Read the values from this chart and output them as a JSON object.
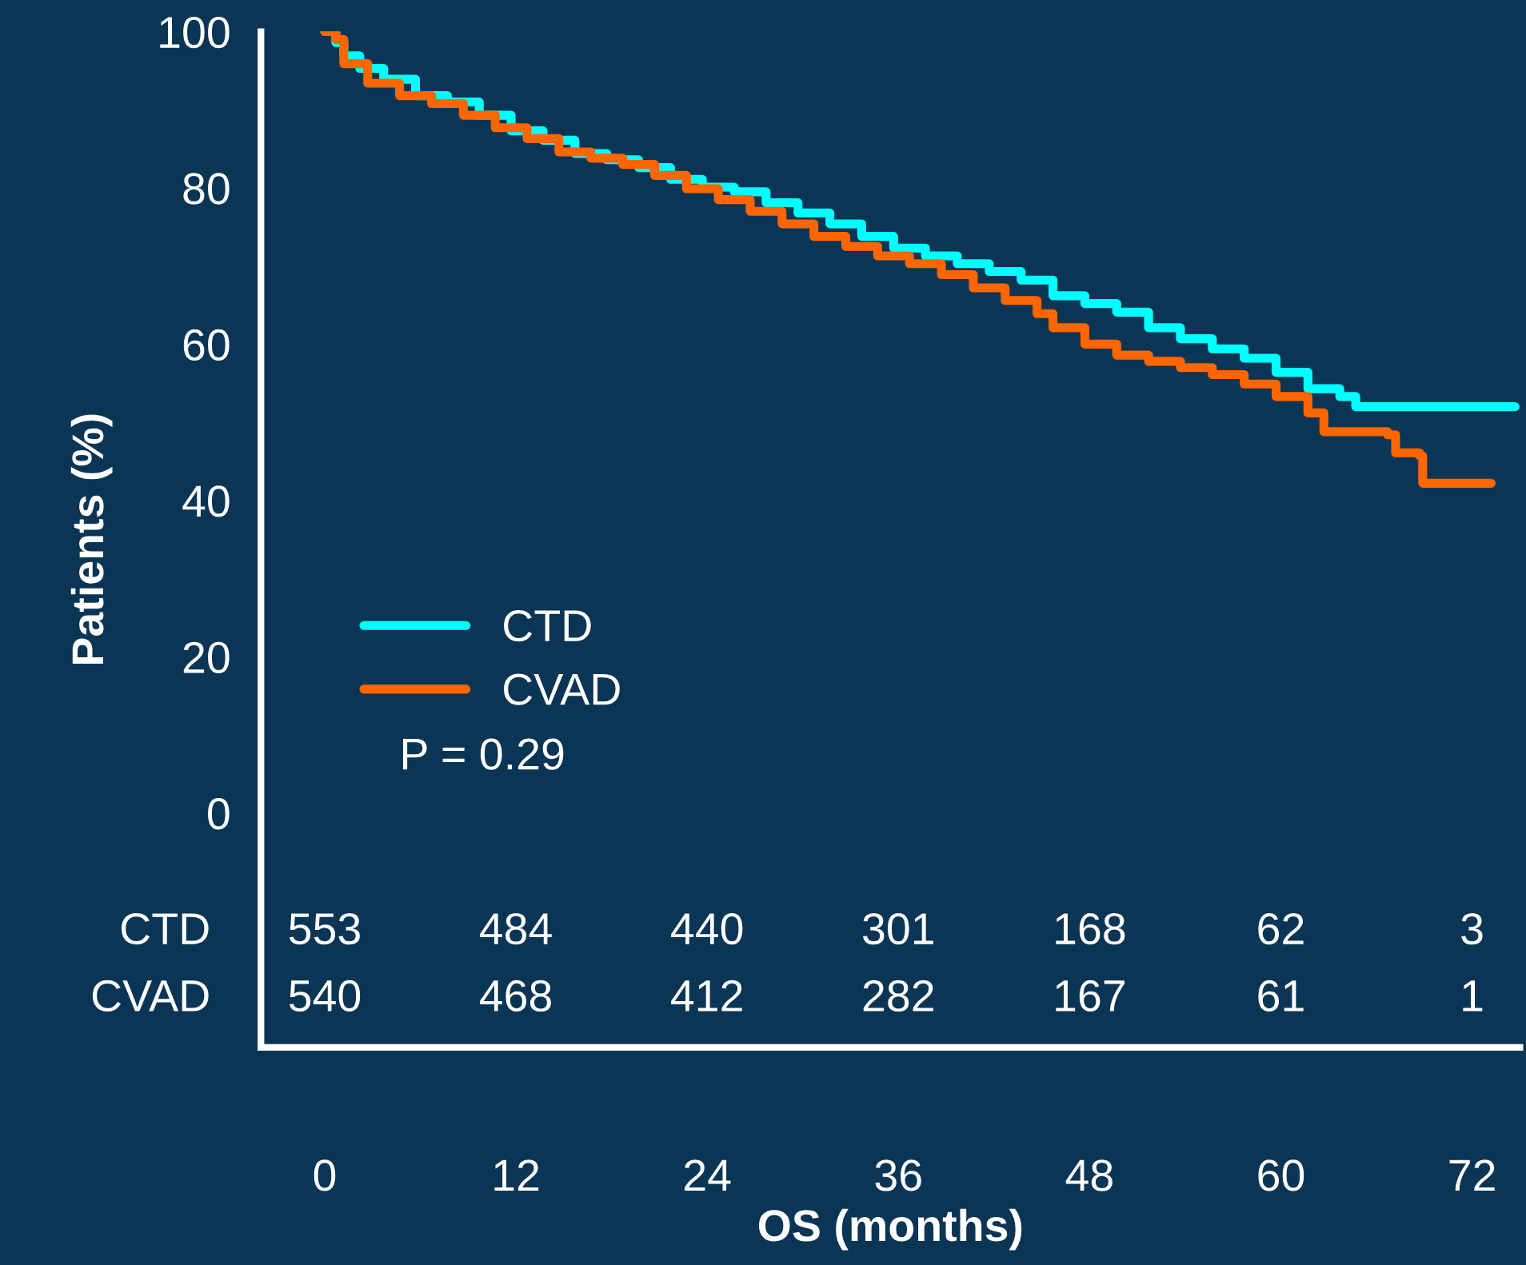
{
  "chart_data": {
    "type": "step",
    "xlabel": "OS (months)",
    "ylabel": "Patients (%)",
    "xlim": [
      -4,
      75
    ],
    "ylim": [
      -30,
      100
    ],
    "xticks": [
      0,
      12,
      24,
      36,
      48,
      60,
      72
    ],
    "yticks": [
      0,
      20,
      40,
      60,
      80,
      100
    ],
    "legend": "left",
    "grid": false,
    "annotations": [
      "P = 0.29",
      "CTD",
      "553",
      "484",
      "440",
      "301",
      "168",
      "62",
      "3",
      "CVAD",
      "540",
      "468",
      "412",
      "282",
      "167",
      "61",
      "1"
    ],
    "series": [
      {
        "name": "CTD",
        "color": "#00ffff",
        "x": [
          0,
          0.7,
          1.2,
          2.2,
          3.7,
          5.7,
          7.7,
          9.7,
          11.7,
          13.7,
          15.7,
          17.7,
          19.7,
          21.7,
          23.7,
          25.7,
          27.7,
          29.7,
          31.7,
          33.7,
          35.7,
          37.7,
          39.7,
          41.7,
          43.7,
          45.7,
          47.7,
          49.7,
          51.7,
          53.7,
          55.7,
          57.7,
          59.7,
          61.7,
          63.7,
          64.7,
          74.7
        ],
        "values": [
          100,
          98.6,
          96.9,
          95.3,
          93.9,
          91.8,
          91.0,
          89.3,
          87.3,
          86.1,
          84.4,
          83.6,
          82.6,
          81.1,
          80.1,
          79.5,
          78.1,
          76.8,
          75.4,
          73.8,
          72.3,
          71.3,
          70.3,
          69.3,
          68.2,
          66.2,
          65.2,
          64.1,
          62.1,
          60.7,
          59.4,
          58.2,
          56.4,
          54.3,
          53.3,
          52.0,
          52.0
        ]
      },
      {
        "name": "CVAD",
        "color": "#ff6600",
        "x": [
          0,
          0.7,
          1.2,
          2.7,
          4.7,
          6.7,
          8.7,
          10.7,
          12.7,
          14.7,
          16.7,
          18.7,
          20.7,
          22.7,
          24.7,
          26.7,
          28.7,
          30.7,
          32.7,
          34.7,
          36.7,
          38.7,
          40.7,
          42.7,
          44.7,
          45.7,
          47.7,
          49.7,
          51.7,
          53.7,
          55.7,
          57.7,
          59.7,
          61.7,
          62.7,
          66.7,
          67.2,
          68.7,
          68.9,
          73.2
        ],
        "values": [
          100,
          99.0,
          95.9,
          93.4,
          91.8,
          90.8,
          89.3,
          87.7,
          86.3,
          84.6,
          83.8,
          83.0,
          81.6,
          79.9,
          78.5,
          77.0,
          75.4,
          73.8,
          72.5,
          71.3,
          70.3,
          68.9,
          67.2,
          65.6,
          63.9,
          62.1,
          60.0,
          58.6,
          57.8,
          57.0,
          56.1,
          54.9,
          53.3,
          51.2,
          48.8,
          48.4,
          46.1,
          45.7,
          42.2,
          42.2
        ]
      }
    ]
  }
}
